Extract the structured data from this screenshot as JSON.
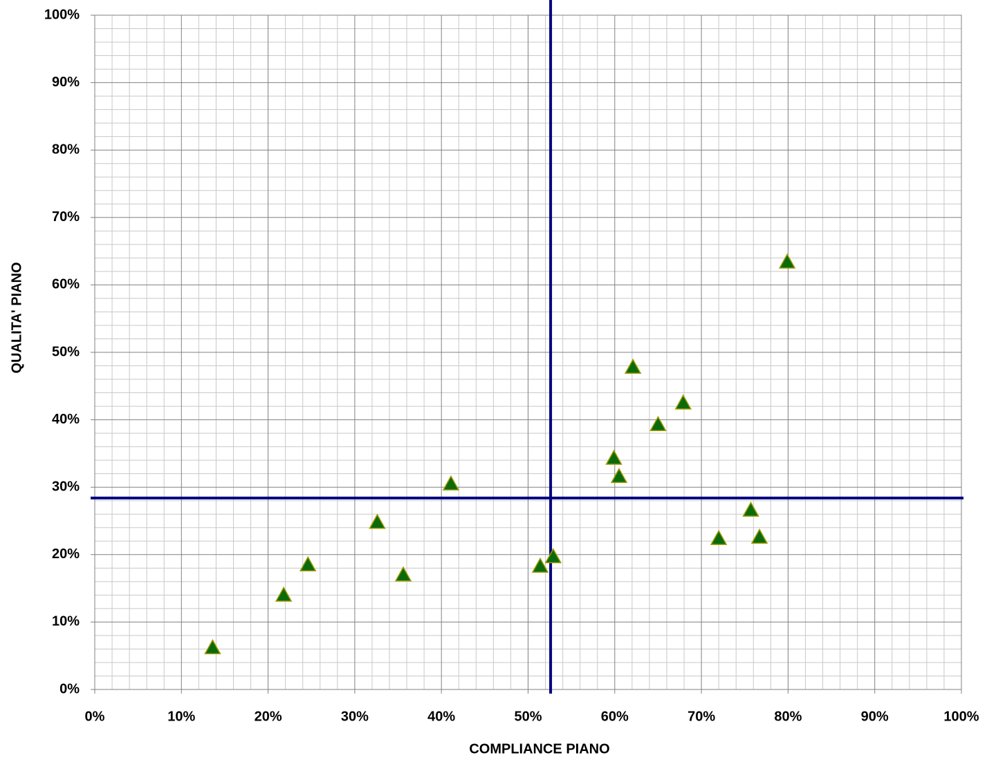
{
  "chart_data": {
    "type": "scatter",
    "x_label": "COMPLIANCE PIANO",
    "y_label": "QUALITA' PIANO",
    "x": [
      13.6,
      21.8,
      24.6,
      32.6,
      35.6,
      41.1,
      51.4,
      52.9,
      59.9,
      60.5,
      62.1,
      65.0,
      67.9,
      72.0,
      75.7,
      76.7,
      79.9
    ],
    "values": [
      6.2,
      14.0,
      18.5,
      24.8,
      17.0,
      30.5,
      18.3,
      19.7,
      34.3,
      31.6,
      47.8,
      39.3,
      42.5,
      22.4,
      26.6,
      22.6,
      63.4
    ],
    "color": "#0b6b0b",
    "edge_color": "#a09a00",
    "marker": "triangle",
    "xlim": [
      0,
      100
    ],
    "ylim": [
      0,
      100
    ],
    "xticks": [
      {
        "value": 0,
        "label": "0%"
      },
      {
        "value": 10,
        "label": "10%"
      },
      {
        "value": 20,
        "label": "20%"
      },
      {
        "value": 30,
        "label": "30%"
      },
      {
        "value": 40,
        "label": "40%"
      },
      {
        "value": 50,
        "label": "50%"
      },
      {
        "value": 60,
        "label": "60%"
      },
      {
        "value": 70,
        "label": "70%"
      },
      {
        "value": 80,
        "label": "80%"
      },
      {
        "value": 90,
        "label": "90%"
      },
      {
        "value": 100,
        "label": "100%"
      }
    ],
    "yticks": [
      {
        "value": 0,
        "label": "0%"
      },
      {
        "value": 10,
        "label": "10%"
      },
      {
        "value": 20,
        "label": "20%"
      },
      {
        "value": 30,
        "label": "30%"
      },
      {
        "value": 40,
        "label": "40%"
      },
      {
        "value": 50,
        "label": "50%"
      },
      {
        "value": 60,
        "label": "60%"
      },
      {
        "value": 70,
        "label": "70%"
      },
      {
        "value": 80,
        "label": "80%"
      },
      {
        "value": 90,
        "label": "90%"
      },
      {
        "value": 100,
        "label": "100%"
      }
    ],
    "xminorticks": [
      2,
      4,
      6,
      8,
      12,
      14,
      16,
      18,
      22,
      24,
      26,
      28,
      32,
      34,
      36,
      38,
      42,
      44,
      46,
      48,
      52,
      54,
      56,
      58,
      62,
      64,
      66,
      68,
      72,
      74,
      76,
      78,
      82,
      84,
      86,
      88,
      92,
      94,
      96,
      98
    ],
    "yminorticks": [
      2,
      4,
      6,
      8,
      12,
      14,
      16,
      18,
      22,
      24,
      26,
      28,
      32,
      34,
      36,
      38,
      42,
      44,
      46,
      48,
      52,
      54,
      56,
      58,
      62,
      64,
      66,
      68,
      72,
      74,
      76,
      78,
      82,
      84,
      86,
      88,
      92,
      94,
      96,
      98
    ],
    "grid": true,
    "reference_lines": {
      "x": 52.6,
      "y": 28.4,
      "color": "#000080"
    }
  }
}
